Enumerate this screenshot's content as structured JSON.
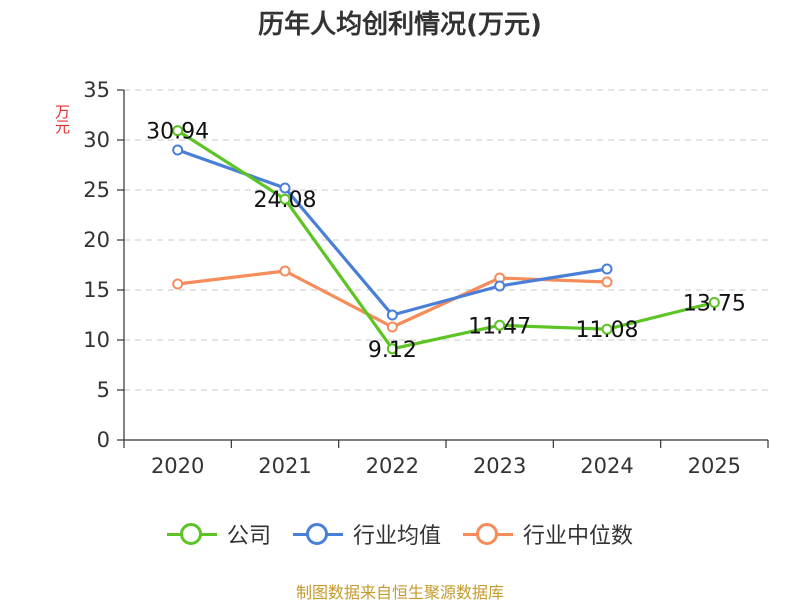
{
  "title": "历年人均创利情况(万元)",
  "unit_label": "万元",
  "source": "制图数据来自恒生聚源数据库",
  "legend": [
    {
      "label": "公司",
      "color": "#5cc424"
    },
    {
      "label": "行业均值",
      "color": "#4a7fd9"
    },
    {
      "label": "行业中位数",
      "color": "#f58c5a"
    }
  ],
  "chart_data": {
    "type": "line",
    "title": "历年人均创利情况(万元)",
    "xlabel": "",
    "ylabel": "万元",
    "categories": [
      "2020",
      "2021",
      "2022",
      "2023",
      "2024",
      "2025"
    ],
    "ylim": [
      0,
      35
    ],
    "yticks": [
      0,
      5,
      10,
      15,
      20,
      25,
      30,
      35
    ],
    "grid": true,
    "legend_position": "bottom",
    "series": [
      {
        "name": "公司",
        "color": "#5cc424",
        "values": [
          30.94,
          24.08,
          9.12,
          11.47,
          11.08,
          13.75
        ],
        "labels": [
          "30.94",
          "24.08",
          "9.12",
          "11.47",
          "11.08",
          "13.75"
        ]
      },
      {
        "name": "行业均值",
        "color": "#4a7fd9",
        "values": [
          29.0,
          25.2,
          12.5,
          15.4,
          17.1,
          null
        ]
      },
      {
        "name": "行业中位数",
        "color": "#f58c5a",
        "values": [
          15.6,
          16.9,
          11.3,
          16.2,
          15.8,
          null
        ]
      }
    ]
  }
}
